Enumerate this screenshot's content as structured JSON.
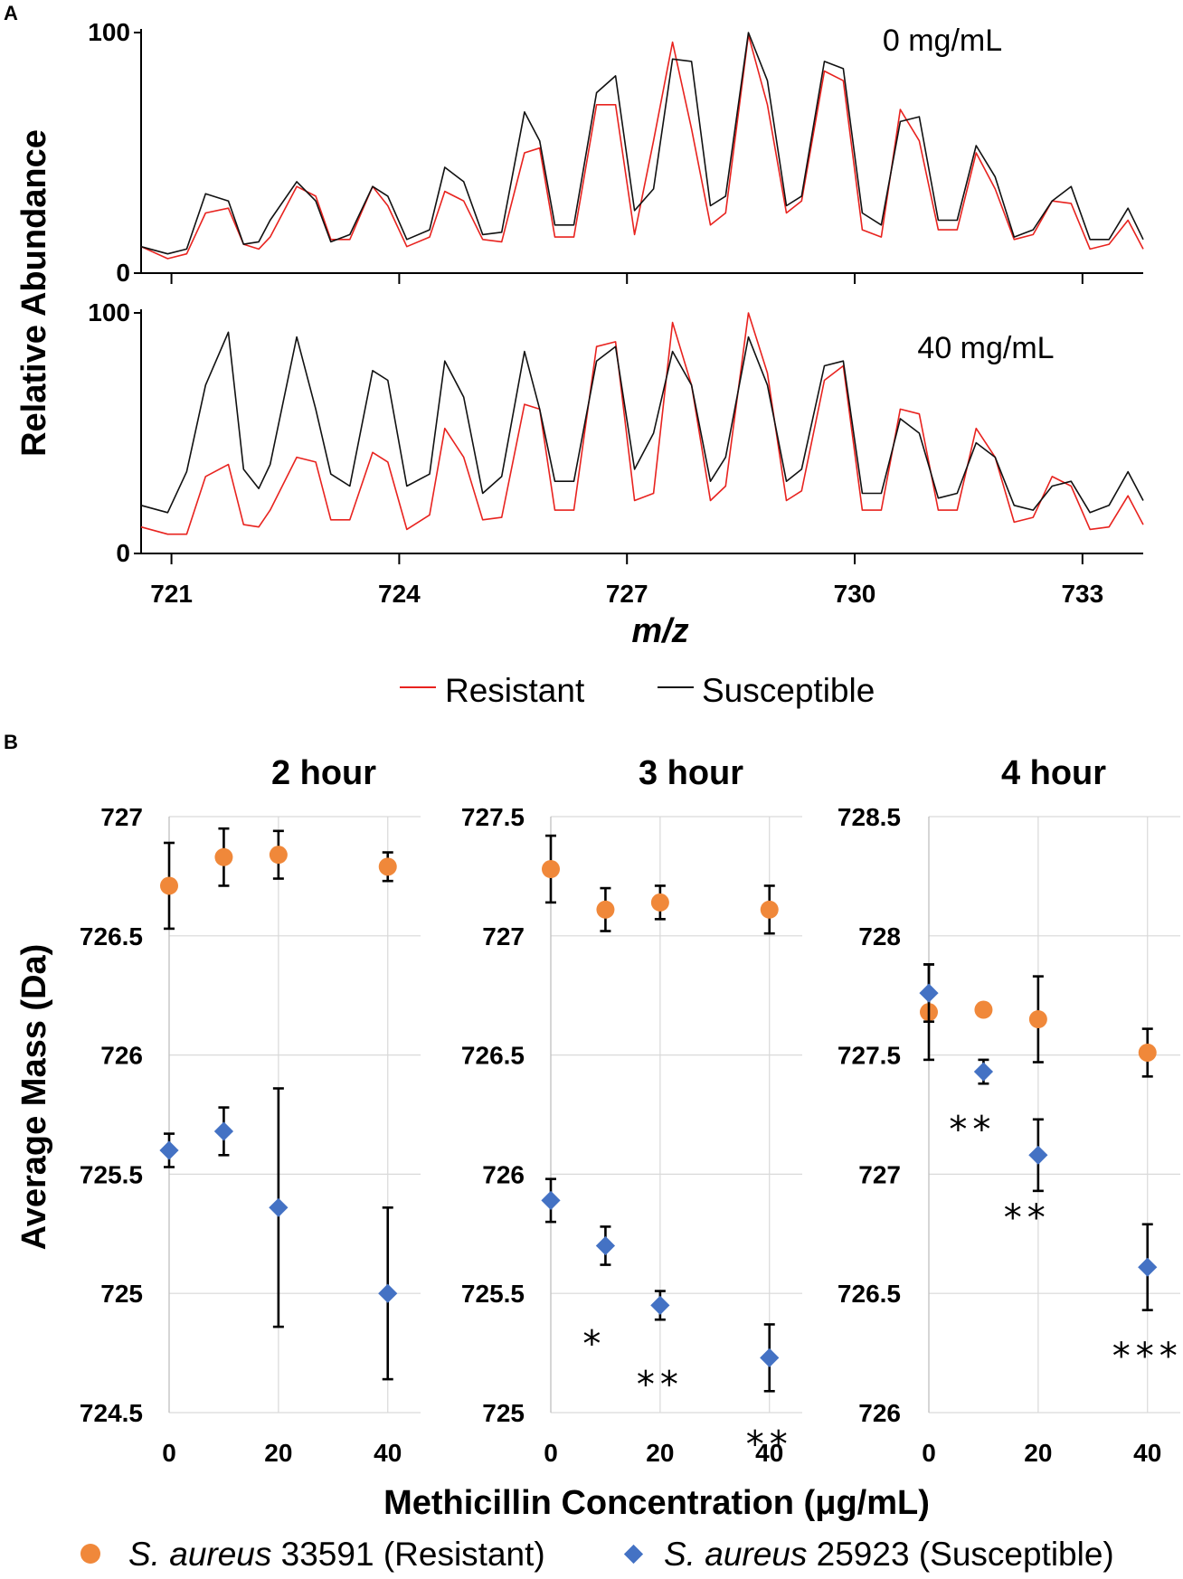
{
  "colors": {
    "resistant_line": "#e8231f",
    "susceptible_line": "#111111",
    "resistant_marker": "#f0883a",
    "susceptible_marker": "#4472c4",
    "grid": "#d9d9d9"
  },
  "chart_data": [
    {
      "panel": "A",
      "type": "line",
      "ylabel": "Relative Abundance",
      "xlabel": "m/z",
      "x_ticks": [
        721,
        724,
        727,
        730,
        733
      ],
      "xlim": [
        720.6,
        733.8
      ],
      "subplots": [
        {
          "title": "0 mg/mL",
          "ylim": [
            0,
            100
          ],
          "y_ticks": [
            0,
            100
          ],
          "series": [
            {
              "name": "Resistant",
              "x": [
                720.6,
                720.95,
                721.2,
                721.45,
                721.75,
                721.95,
                722.15,
                722.3,
                722.65,
                722.9,
                723.1,
                723.35,
                723.65,
                723.85,
                724.1,
                724.4,
                724.6,
                724.85,
                725.1,
                725.35,
                725.65,
                725.85,
                726.05,
                726.3,
                726.6,
                726.85,
                727.1,
                727.35,
                727.6,
                727.85,
                728.1,
                728.3,
                728.6,
                728.85,
                729.1,
                729.3,
                729.6,
                729.85,
                730.1,
                730.35,
                730.6,
                730.85,
                731.1,
                731.35,
                731.6,
                731.85,
                732.1,
                732.35,
                732.6,
                732.85,
                733.1,
                733.35,
                733.6,
                733.8
              ],
              "values": [
                11,
                6,
                8,
                25,
                27,
                12,
                10,
                15,
                36,
                32,
                14,
                14,
                36,
                28,
                11,
                15,
                34,
                30,
                14,
                13,
                50,
                52,
                15,
                15,
                70,
                70,
                16,
                55,
                96,
                60,
                20,
                25,
                99,
                70,
                25,
                30,
                84,
                80,
                18,
                15,
                68,
                55,
                18,
                18,
                50,
                35,
                14,
                16,
                30,
                29,
                10,
                12,
                22,
                10
              ]
            },
            {
              "name": "Susceptible",
              "x": [
                720.6,
                720.95,
                721.2,
                721.45,
                721.75,
                721.95,
                722.15,
                722.3,
                722.65,
                722.9,
                723.1,
                723.35,
                723.65,
                723.85,
                724.1,
                724.4,
                724.6,
                724.85,
                725.1,
                725.35,
                725.65,
                725.85,
                726.05,
                726.3,
                726.6,
                726.85,
                727.1,
                727.35,
                727.6,
                727.85,
                728.1,
                728.3,
                728.6,
                728.85,
                729.1,
                729.3,
                729.6,
                729.85,
                730.1,
                730.35,
                730.6,
                730.85,
                731.1,
                731.35,
                731.6,
                731.85,
                732.1,
                732.35,
                732.6,
                732.85,
                733.1,
                733.35,
                733.6,
                733.8
              ],
              "values": [
                11,
                8,
                10,
                33,
                30,
                12,
                13,
                22,
                38,
                30,
                13,
                16,
                36,
                32,
                14,
                18,
                44,
                38,
                16,
                17,
                67,
                55,
                20,
                20,
                75,
                82,
                26,
                35,
                89,
                88,
                28,
                32,
                100,
                80,
                28,
                32,
                88,
                85,
                25,
                20,
                63,
                65,
                22,
                22,
                53,
                40,
                15,
                18,
                30,
                36,
                14,
                14,
                27,
                14
              ]
            }
          ]
        },
        {
          "title": "40 mg/mL",
          "ylim": [
            0,
            100
          ],
          "y_ticks": [
            0,
            100
          ],
          "series": [
            {
              "name": "Resistant",
              "x": [
                720.6,
                720.95,
                721.2,
                721.45,
                721.75,
                721.95,
                722.15,
                722.3,
                722.65,
                722.9,
                723.1,
                723.35,
                723.65,
                723.85,
                724.1,
                724.4,
                724.6,
                724.85,
                725.1,
                725.35,
                725.65,
                725.85,
                726.05,
                726.3,
                726.6,
                726.85,
                727.1,
                727.35,
                727.6,
                727.85,
                728.1,
                728.3,
                728.6,
                728.85,
                729.1,
                729.3,
                729.6,
                729.85,
                730.1,
                730.35,
                730.6,
                730.85,
                731.1,
                731.35,
                731.6,
                731.85,
                732.1,
                732.35,
                732.6,
                732.85,
                733.1,
                733.35,
                733.6,
                733.8
              ],
              "values": [
                11,
                8,
                8,
                32,
                37,
                12,
                11,
                18,
                40,
                38,
                14,
                14,
                42,
                38,
                10,
                16,
                52,
                40,
                14,
                15,
                62,
                60,
                18,
                18,
                86,
                88,
                22,
                25,
                96,
                70,
                22,
                28,
                100,
                75,
                22,
                26,
                72,
                78,
                18,
                18,
                60,
                58,
                18,
                18,
                52,
                40,
                13,
                15,
                32,
                28,
                10,
                11,
                24,
                12
              ]
            },
            {
              "name": "Susceptible",
              "x": [
                720.6,
                720.95,
                721.2,
                721.45,
                721.75,
                721.95,
                722.15,
                722.3,
                722.65,
                722.9,
                723.1,
                723.35,
                723.65,
                723.85,
                724.1,
                724.4,
                724.6,
                724.85,
                725.1,
                725.35,
                725.65,
                725.85,
                726.05,
                726.3,
                726.6,
                726.85,
                727.1,
                727.35,
                727.6,
                727.85,
                728.1,
                728.3,
                728.6,
                728.85,
                729.1,
                729.3,
                729.6,
                729.85,
                730.1,
                730.35,
                730.6,
                730.85,
                731.1,
                731.35,
                731.6,
                731.85,
                732.1,
                732.35,
                732.6,
                732.85,
                733.1,
                733.35,
                733.6,
                733.8
              ],
              "values": [
                20,
                17,
                34,
                70,
                92,
                35,
                27,
                37,
                90,
                60,
                33,
                28,
                76,
                72,
                28,
                33,
                80,
                65,
                25,
                32,
                84,
                60,
                30,
                30,
                80,
                86,
                35,
                50,
                84,
                70,
                30,
                40,
                90,
                70,
                30,
                35,
                78,
                80,
                25,
                25,
                56,
                50,
                23,
                25,
                46,
                40,
                20,
                18,
                28,
                30,
                17,
                20,
                34,
                22
              ]
            }
          ]
        }
      ],
      "legend": [
        "Resistant",
        "Susceptible"
      ]
    },
    {
      "panel": "B",
      "type": "scatter",
      "ylabel": "Average Mass (Da)",
      "xlabel": "Methicillin Concentration (μg/mL)",
      "x_ticks": [
        0,
        20,
        40
      ],
      "xlim": [
        0,
        46
      ],
      "legend": [
        {
          "marker": "circle",
          "prefix": "S. aureus",
          "label": " 33591 (Resistant)"
        },
        {
          "marker": "diamond",
          "prefix": "S. aureus",
          "label": " 25923 (Susceptible)"
        }
      ],
      "subplots": [
        {
          "title": "2 hour",
          "ylim": [
            724.5,
            727
          ],
          "y_ticks": [
            "724.5",
            "725",
            "725.5",
            "726",
            "726.5",
            "727"
          ],
          "series": [
            {
              "name": "S. aureus 33591 (Resistant)",
              "x": [
                0,
                10,
                20,
                40
              ],
              "values": [
                726.71,
                726.83,
                726.84,
                726.79
              ],
              "errors": [
                0.18,
                0.12,
                0.1,
                0.06
              ]
            },
            {
              "name": "S. aureus 25923 (Susceptible)",
              "x": [
                0,
                10,
                20,
                40
              ],
              "values": [
                725.6,
                725.68,
                725.36,
                725.0
              ],
              "errors": [
                0.07,
                0.1,
                0.5,
                0.36
              ]
            }
          ],
          "significance": [
            {
              "x": 0,
              "text": "",
              "y": 0
            }
          ]
        },
        {
          "title": "3 hour",
          "ylim": [
            725,
            727.5
          ],
          "y_ticks": [
            "725",
            "725.5",
            "726",
            "726.5",
            "727",
            "727.5"
          ],
          "series": [
            {
              "name": "S. aureus 33591 (Resistant)",
              "x": [
                0,
                10,
                20,
                40
              ],
              "values": [
                727.28,
                727.11,
                727.14,
                727.11
              ],
              "errors": [
                0.14,
                0.09,
                0.07,
                0.1
              ]
            },
            {
              "name": "S. aureus 25923 (Susceptible)",
              "x": [
                0,
                10,
                20,
                40
              ],
              "values": [
                725.89,
                725.7,
                725.45,
                725.23
              ],
              "errors": [
                0.09,
                0.08,
                0.06,
                0.14
              ]
            }
          ],
          "significance": [
            {
              "x": 8,
              "y": 725.35,
              "text": "*"
            },
            {
              "x": 20,
              "y": 725.18,
              "text": "**"
            },
            {
              "x": 40,
              "y": 724.93,
              "text": "**"
            }
          ]
        },
        {
          "title": "4 hour",
          "ylim": [
            726,
            728.5
          ],
          "y_ticks": [
            "726",
            "726.5",
            "727",
            "727.5",
            "728",
            "728.5"
          ],
          "series": [
            {
              "name": "S. aureus 33591 (Resistant)",
              "x": [
                0,
                10,
                20,
                40
              ],
              "values": [
                727.68,
                727.69,
                727.65,
                727.51
              ],
              "errors": [
                0.2,
                0.0,
                0.18,
                0.1
              ]
            },
            {
              "name": "S. aureus 25923 (Susceptible)",
              "x": [
                0,
                10,
                20,
                40
              ],
              "values": [
                727.76,
                727.43,
                727.08,
                726.61
              ],
              "errors": [
                0.12,
                0.05,
                0.15,
                0.18
              ]
            }
          ],
          "significance": [
            {
              "x": 8,
              "y": 727.25,
              "text": "**"
            },
            {
              "x": 18,
              "y": 726.88,
              "text": "**"
            },
            {
              "x": 40,
              "y": 726.3,
              "text": "***"
            }
          ]
        }
      ]
    }
  ]
}
